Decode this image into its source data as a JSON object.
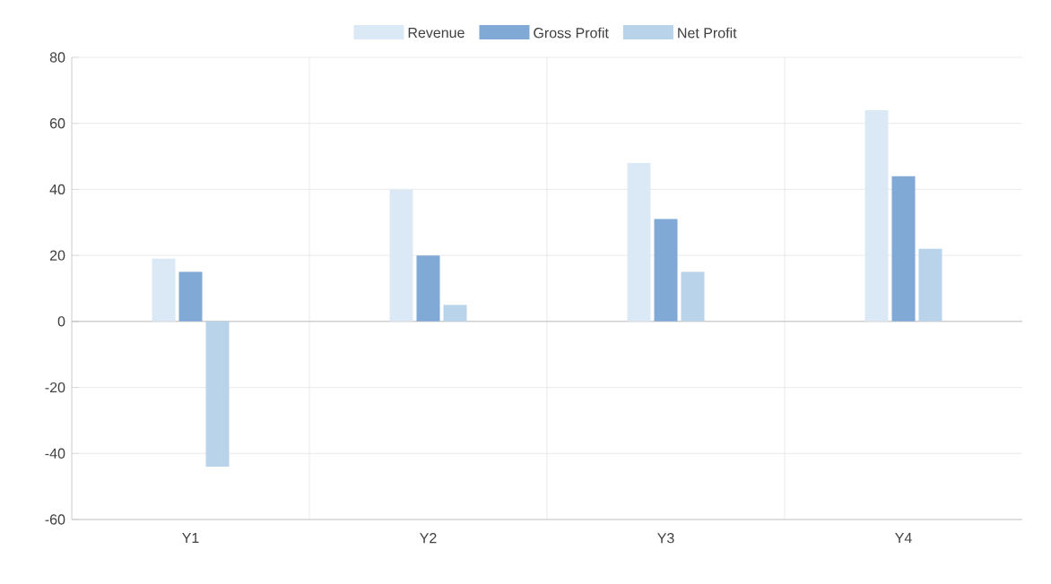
{
  "chart_data": {
    "type": "bar",
    "categories": [
      "Y1",
      "Y2",
      "Y3",
      "Y4"
    ],
    "series": [
      {
        "name": "Revenue",
        "color": "#dbe9f6",
        "values": [
          19,
          40,
          48,
          64
        ]
      },
      {
        "name": "Gross Profit",
        "color": "#80a9d5",
        "values": [
          15,
          20,
          31,
          44
        ]
      },
      {
        "name": "Net Profit",
        "color": "#b9d3ea",
        "values": [
          -44,
          5,
          15,
          22
        ]
      }
    ],
    "ylim": [
      -60,
      80
    ],
    "yticks": [
      -60,
      -40,
      -20,
      0,
      20,
      40,
      60,
      80
    ],
    "grid": true,
    "legend": "top"
  }
}
